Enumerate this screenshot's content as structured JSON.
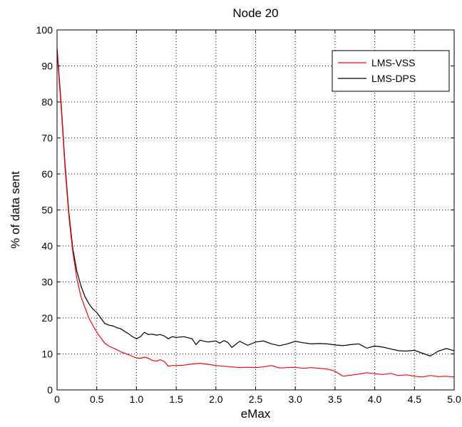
{
  "chart_data": {
    "type": "line",
    "title": "Node 20",
    "xlabel": "eMax",
    "ylabel": "% of data sent",
    "xlim": [
      0,
      5
    ],
    "ylim": [
      0,
      100
    ],
    "grid": true,
    "legend_position": "top-right",
    "x_ticks": [
      "0",
      "0.5",
      "1.0",
      "1.5",
      "2.0",
      "2.5",
      "3.0",
      "3.5",
      "4.0",
      "4.5",
      "5.0"
    ],
    "y_ticks": [
      "0",
      "10",
      "20",
      "30",
      "40",
      "50",
      "60",
      "70",
      "80",
      "90",
      "100"
    ],
    "series": [
      {
        "name": "LMS-VSS",
        "color": "#ff0000",
        "points": [
          [
            0,
            94
          ],
          [
            0.05,
            79
          ],
          [
            0.1,
            62
          ],
          [
            0.15,
            48
          ],
          [
            0.2,
            38
          ],
          [
            0.25,
            31
          ],
          [
            0.3,
            26
          ],
          [
            0.35,
            23
          ],
          [
            0.4,
            20
          ],
          [
            0.45,
            18
          ],
          [
            0.5,
            16
          ],
          [
            0.55,
            14.5
          ],
          [
            0.6,
            13
          ],
          [
            0.65,
            12.2
          ],
          [
            0.7,
            11.7
          ],
          [
            0.75,
            11.2
          ],
          [
            0.8,
            10.6
          ],
          [
            0.85,
            10.2
          ],
          [
            0.9,
            9.8
          ],
          [
            0.95,
            9.3
          ],
          [
            1.0,
            8.9
          ],
          [
            1.05,
            8.8
          ],
          [
            1.1,
            9.1
          ],
          [
            1.15,
            8.8
          ],
          [
            1.2,
            8.2
          ],
          [
            1.25,
            8.0
          ],
          [
            1.3,
            8.4
          ],
          [
            1.35,
            7.9
          ],
          [
            1.4,
            6.6
          ],
          [
            1.45,
            6.8
          ],
          [
            1.5,
            6.8
          ],
          [
            1.6,
            6.9
          ],
          [
            1.7,
            7.2
          ],
          [
            1.8,
            7.4
          ],
          [
            1.9,
            7.1
          ],
          [
            2.0,
            6.8
          ],
          [
            2.1,
            6.6
          ],
          [
            2.2,
            6.4
          ],
          [
            2.3,
            6.2
          ],
          [
            2.4,
            6.3
          ],
          [
            2.5,
            6.2
          ],
          [
            2.6,
            6.4
          ],
          [
            2.7,
            6.8
          ],
          [
            2.8,
            6.1
          ],
          [
            2.9,
            6.2
          ],
          [
            3.0,
            6.3
          ],
          [
            3.1,
            6.0
          ],
          [
            3.2,
            6.2
          ],
          [
            3.3,
            6.0
          ],
          [
            3.4,
            5.8
          ],
          [
            3.5,
            5.2
          ],
          [
            3.6,
            3.8
          ],
          [
            3.7,
            4.1
          ],
          [
            3.8,
            4.4
          ],
          [
            3.9,
            4.8
          ],
          [
            4.0,
            4.5
          ],
          [
            4.1,
            4.3
          ],
          [
            4.2,
            4.6
          ],
          [
            4.3,
            4.0
          ],
          [
            4.4,
            4.2
          ],
          [
            4.5,
            3.8
          ],
          [
            4.6,
            3.6
          ],
          [
            4.7,
            4.0
          ],
          [
            4.8,
            3.7
          ],
          [
            4.9,
            3.8
          ],
          [
            5.0,
            3.6
          ]
        ]
      },
      {
        "name": "LMS-DPS",
        "color": "#000000",
        "points": [
          [
            0,
            95
          ],
          [
            0.05,
            80
          ],
          [
            0.1,
            63
          ],
          [
            0.15,
            49
          ],
          [
            0.2,
            39
          ],
          [
            0.25,
            33
          ],
          [
            0.3,
            29
          ],
          [
            0.35,
            26
          ],
          [
            0.4,
            24
          ],
          [
            0.45,
            22.5
          ],
          [
            0.5,
            21.5
          ],
          [
            0.55,
            20
          ],
          [
            0.6,
            18.5
          ],
          [
            0.65,
            18
          ],
          [
            0.7,
            17.8
          ],
          [
            0.75,
            17.3
          ],
          [
            0.8,
            17
          ],
          [
            0.85,
            16.3
          ],
          [
            0.9,
            15.6
          ],
          [
            0.95,
            14.8
          ],
          [
            1.0,
            14.2
          ],
          [
            1.05,
            14.8
          ],
          [
            1.1,
            16
          ],
          [
            1.15,
            15.4
          ],
          [
            1.2,
            15.5
          ],
          [
            1.25,
            15.2
          ],
          [
            1.3,
            15.4
          ],
          [
            1.35,
            15.0
          ],
          [
            1.4,
            14.2
          ],
          [
            1.45,
            14.8
          ],
          [
            1.5,
            14.6
          ],
          [
            1.6,
            14.8
          ],
          [
            1.7,
            14.2
          ],
          [
            1.75,
            12.6
          ],
          [
            1.8,
            13.8
          ],
          [
            1.9,
            13.3
          ],
          [
            2.0,
            13.6
          ],
          [
            2.05,
            13.0
          ],
          [
            2.1,
            13.7
          ],
          [
            2.15,
            13.2
          ],
          [
            2.2,
            11.8
          ],
          [
            2.3,
            13.5
          ],
          [
            2.4,
            12.4
          ],
          [
            2.5,
            13.3
          ],
          [
            2.6,
            13.6
          ],
          [
            2.7,
            12.8
          ],
          [
            2.8,
            12.3
          ],
          [
            2.9,
            12.8
          ],
          [
            3.0,
            13.5
          ],
          [
            3.1,
            13.1
          ],
          [
            3.2,
            12.8
          ],
          [
            3.3,
            12.9
          ],
          [
            3.4,
            12.8
          ],
          [
            3.5,
            12.5
          ],
          [
            3.6,
            12.3
          ],
          [
            3.7,
            12.6
          ],
          [
            3.8,
            12.8
          ],
          [
            3.9,
            11.6
          ],
          [
            4.0,
            12.2
          ],
          [
            4.1,
            11.9
          ],
          [
            4.2,
            11.4
          ],
          [
            4.3,
            10.9
          ],
          [
            4.4,
            10.8
          ],
          [
            4.5,
            11.0
          ],
          [
            4.6,
            10.2
          ],
          [
            4.7,
            9.4
          ],
          [
            4.8,
            10.8
          ],
          [
            4.9,
            11.5
          ],
          [
            5.0,
            10.9
          ]
        ]
      }
    ]
  }
}
